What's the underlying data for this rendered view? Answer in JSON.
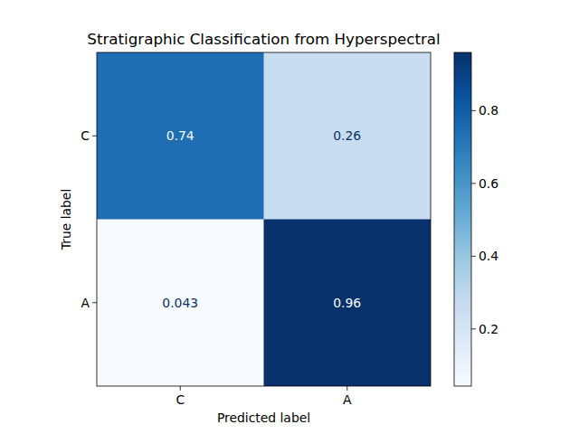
{
  "chart_data": {
    "type": "heatmap",
    "title": "Stratigraphic Classification from Hyperspectral",
    "x_label": "Predicted label",
    "y_label": "True label",
    "x_categories": [
      "C",
      "A"
    ],
    "y_categories": [
      "C",
      "A"
    ],
    "cells": [
      [
        0.74,
        0.26
      ],
      [
        0.043,
        0.96
      ]
    ],
    "data_labels": true,
    "colorbar_lim": [
      0.043,
      0.96
    ],
    "colorbar_ticks": [
      0.2,
      0.4,
      0.6,
      0.8
    ]
  }
}
